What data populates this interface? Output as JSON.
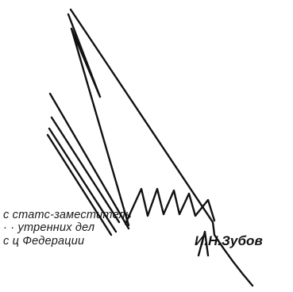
{
  "signature_block": {
    "line1": "с         статс-заместитель",
    "line2": "·  ·      утренних дел",
    "line3": "с ц Федерации",
    "signatory": "И.Н.Зубов"
  },
  "colors": {
    "ink": "#111111"
  }
}
